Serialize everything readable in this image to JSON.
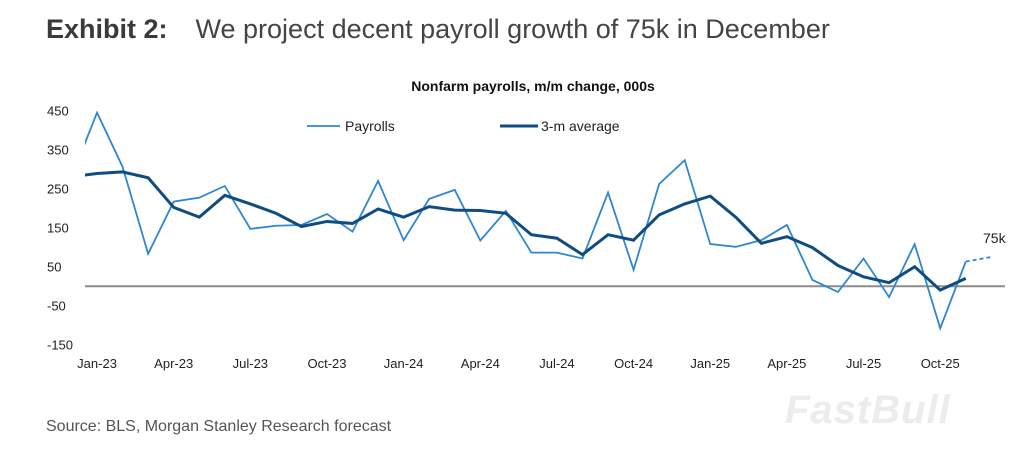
{
  "header": {
    "exhibit": "Exhibit 2:",
    "title": "We project decent payroll growth of 75k in December"
  },
  "source": "Source: BLS, Morgan Stanley Research forecast",
  "watermark": "FastBull",
  "colors": {
    "payrolls": "#2f86d1",
    "avg": "#0f4c81",
    "zero": "#8c8c8c"
  },
  "chart_data": {
    "type": "line",
    "title": "Nonfarm payrolls, m/m change, 000s",
    "xlabel": "",
    "ylabel": "",
    "ylim": [
      -150,
      450
    ],
    "yticks": [
      450,
      350,
      250,
      150,
      50,
      -50,
      -150
    ],
    "xticks": [
      "Jan-23",
      "Apr-23",
      "Jul-23",
      "Oct-23",
      "Jan-24",
      "Apr-24",
      "Jul-24",
      "Oct-24",
      "Jan-25",
      "Apr-25",
      "Jul-25",
      "Oct-25"
    ],
    "legend_position": "top-center",
    "categories": [
      "Dec-22",
      "Jan-23",
      "Feb-23",
      "Mar-23",
      "Apr-23",
      "May-23",
      "Jun-23",
      "Jul-23",
      "Aug-23",
      "Sep-23",
      "Oct-23",
      "Nov-23",
      "Dec-23",
      "Jan-24",
      "Feb-24",
      "Mar-24",
      "Apr-24",
      "May-24",
      "Jun-24",
      "Jul-24",
      "Aug-24",
      "Sep-24",
      "Oct-24",
      "Nov-24",
      "Dec-24",
      "Jan-25",
      "Feb-25",
      "Mar-25",
      "Apr-25",
      "May-25",
      "Jun-25",
      "Jul-25",
      "Aug-25",
      "Sep-25",
      "Oct-25",
      "Nov-25"
    ],
    "series": [
      {
        "name": "Payrolls",
        "values": [
          280,
          445,
          306,
          83,
          217,
          227,
          257,
          147,
          155,
          157,
          185,
          140,
          270,
          118,
          224,
          247,
          117,
          193,
          86,
          86,
          71,
          240,
          42,
          262,
          323,
          108,
          101,
          118,
          157,
          16,
          -15,
          71,
          -28,
          108,
          -108,
          63
        ]
      },
      {
        "name": "3-m average",
        "values": [
          281,
          289,
          293,
          278,
          202,
          177,
          233,
          211,
          187,
          153,
          166,
          161,
          198,
          177,
          204,
          195,
          194,
          187,
          132,
          123,
          81,
          132,
          118,
          183,
          211,
          231,
          177,
          110,
          127,
          99,
          53,
          24,
          9,
          50,
          -10,
          20
        ]
      }
    ],
    "forecast": {
      "category": "Dec-25",
      "value": 75,
      "label": "75k"
    }
  }
}
